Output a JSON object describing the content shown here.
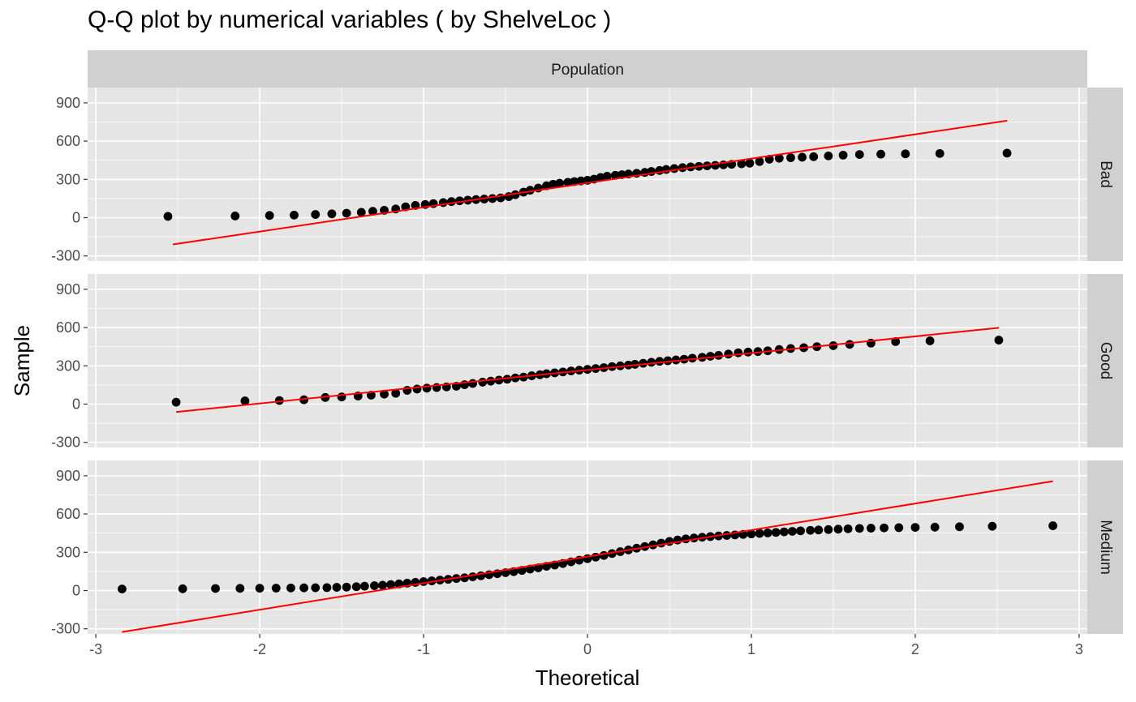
{
  "chart_data": {
    "type": "scatter",
    "title": "Q-Q plot by numerical variables ( by ShelveLoc )",
    "xlabel": "Theoretical",
    "ylabel": "Sample",
    "strip_top": "Population",
    "xlim": [
      -3.05,
      3.05
    ],
    "ylim": [
      -340,
      1020
    ],
    "x_ticks": [
      -3,
      -2,
      -1,
      0,
      1,
      2,
      3
    ],
    "y_ticks": [
      -300,
      0,
      300,
      600,
      900
    ],
    "grid": true,
    "colors": {
      "panel_bg": "#e5e5e5",
      "strip_bg": "#d0d0d0",
      "grid": "#ffffff",
      "point": "#000000",
      "line": "#ff0000"
    },
    "panels": [
      {
        "name": "Bad",
        "line": {
          "x": [
            -2.53,
            2.56
          ],
          "y": [
            -210,
            760
          ]
        },
        "points": [
          [
            -2.56,
            10
          ],
          [
            -2.15,
            13
          ],
          [
            -1.94,
            17
          ],
          [
            -1.79,
            20
          ],
          [
            -1.66,
            25
          ],
          [
            -1.56,
            30
          ],
          [
            -1.47,
            35
          ],
          [
            -1.38,
            42
          ],
          [
            -1.31,
            50
          ],
          [
            -1.24,
            58
          ],
          [
            -1.17,
            68
          ],
          [
            -1.11,
            85
          ],
          [
            -1.05,
            96
          ],
          [
            -0.99,
            103
          ],
          [
            -0.94,
            110
          ],
          [
            -0.88,
            118
          ],
          [
            -0.83,
            126
          ],
          [
            -0.78,
            132
          ],
          [
            -0.73,
            137
          ],
          [
            -0.68,
            142
          ],
          [
            -0.63,
            146
          ],
          [
            -0.58,
            150
          ],
          [
            -0.53,
            155
          ],
          [
            -0.48,
            165
          ],
          [
            -0.44,
            180
          ],
          [
            -0.39,
            200
          ],
          [
            -0.35,
            215
          ],
          [
            -0.3,
            232
          ],
          [
            -0.25,
            250
          ],
          [
            -0.21,
            262
          ],
          [
            -0.17,
            270
          ],
          [
            -0.12,
            277
          ],
          [
            -0.08,
            283
          ],
          [
            -0.04,
            288
          ],
          [
            0.0,
            293
          ],
          [
            0.04,
            302
          ],
          [
            0.08,
            315
          ],
          [
            0.12,
            325
          ],
          [
            0.17,
            332
          ],
          [
            0.21,
            337
          ],
          [
            0.25,
            342
          ],
          [
            0.3,
            348
          ],
          [
            0.35,
            355
          ],
          [
            0.39,
            362
          ],
          [
            0.44,
            370
          ],
          [
            0.48,
            378
          ],
          [
            0.53,
            385
          ],
          [
            0.58,
            392
          ],
          [
            0.63,
            398
          ],
          [
            0.68,
            402
          ],
          [
            0.73,
            406
          ],
          [
            0.78,
            410
          ],
          [
            0.83,
            414
          ],
          [
            0.88,
            418
          ],
          [
            0.94,
            422
          ],
          [
            0.99,
            427
          ],
          [
            1.05,
            440
          ],
          [
            1.11,
            458
          ],
          [
            1.17,
            466
          ],
          [
            1.24,
            470
          ],
          [
            1.31,
            474
          ],
          [
            1.38,
            478
          ],
          [
            1.47,
            484
          ],
          [
            1.56,
            490
          ],
          [
            1.66,
            495
          ],
          [
            1.79,
            498
          ],
          [
            1.94,
            500
          ],
          [
            2.15,
            503
          ],
          [
            2.56,
            506
          ]
        ]
      },
      {
        "name": "Good",
        "line": {
          "x": [
            -2.51,
            2.51
          ],
          "y": [
            -62,
            598
          ]
        },
        "points": [
          [
            -2.51,
            15
          ],
          [
            -2.09,
            25
          ],
          [
            -1.88,
            28
          ],
          [
            -1.73,
            34
          ],
          [
            -1.6,
            52
          ],
          [
            -1.5,
            56
          ],
          [
            -1.4,
            63
          ],
          [
            -1.32,
            70
          ],
          [
            -1.24,
            78
          ],
          [
            -1.17,
            85
          ],
          [
            -1.1,
            108
          ],
          [
            -1.04,
            118
          ],
          [
            -0.98,
            125
          ],
          [
            -0.92,
            130
          ],
          [
            -0.86,
            135
          ],
          [
            -0.8,
            140
          ],
          [
            -0.75,
            152
          ],
          [
            -0.7,
            162
          ],
          [
            -0.64,
            172
          ],
          [
            -0.59,
            180
          ],
          [
            -0.54,
            188
          ],
          [
            -0.49,
            195
          ],
          [
            -0.44,
            205
          ],
          [
            -0.39,
            212
          ],
          [
            -0.34,
            222
          ],
          [
            -0.29,
            230
          ],
          [
            -0.25,
            238
          ],
          [
            -0.2,
            245
          ],
          [
            -0.15,
            252
          ],
          [
            -0.1,
            260
          ],
          [
            -0.05,
            266
          ],
          [
            0.0,
            272
          ],
          [
            0.05,
            279
          ],
          [
            0.1,
            286
          ],
          [
            0.15,
            294
          ],
          [
            0.2,
            300
          ],
          [
            0.25,
            306
          ],
          [
            0.29,
            312
          ],
          [
            0.34,
            320
          ],
          [
            0.39,
            328
          ],
          [
            0.44,
            335
          ],
          [
            0.49,
            340
          ],
          [
            0.54,
            346
          ],
          [
            0.59,
            352
          ],
          [
            0.64,
            360
          ],
          [
            0.7,
            367
          ],
          [
            0.75,
            375
          ],
          [
            0.8,
            382
          ],
          [
            0.86,
            392
          ],
          [
            0.92,
            402
          ],
          [
            0.98,
            408
          ],
          [
            1.04,
            412
          ],
          [
            1.1,
            418
          ],
          [
            1.17,
            428
          ],
          [
            1.24,
            436
          ],
          [
            1.32,
            442
          ],
          [
            1.4,
            450
          ],
          [
            1.5,
            458
          ],
          [
            1.6,
            468
          ],
          [
            1.73,
            478
          ],
          [
            1.88,
            490
          ],
          [
            2.09,
            496
          ],
          [
            2.51,
            502
          ]
        ]
      },
      {
        "name": "Medium",
        "line": {
          "x": [
            -2.84,
            2.84
          ],
          "y": [
            -325,
            857
          ]
        },
        "points": [
          [
            -2.84,
            12
          ],
          [
            -2.47,
            14
          ],
          [
            -2.27,
            16
          ],
          [
            -2.12,
            17
          ],
          [
            -2.0,
            18
          ],
          [
            -1.9,
            19
          ],
          [
            -1.81,
            20
          ],
          [
            -1.73,
            21
          ],
          [
            -1.66,
            22
          ],
          [
            -1.59,
            23
          ],
          [
            -1.53,
            25
          ],
          [
            -1.47,
            27
          ],
          [
            -1.41,
            30
          ],
          [
            -1.36,
            34
          ],
          [
            -1.3,
            38
          ],
          [
            -1.25,
            42
          ],
          [
            -1.2,
            47
          ],
          [
            -1.15,
            52
          ],
          [
            -1.1,
            58
          ],
          [
            -1.05,
            64
          ],
          [
            -1.0,
            70
          ],
          [
            -0.95,
            76
          ],
          [
            -0.9,
            82
          ],
          [
            -0.85,
            88
          ],
          [
            -0.8,
            94
          ],
          [
            -0.75,
            100
          ],
          [
            -0.7,
            108
          ],
          [
            -0.65,
            116
          ],
          [
            -0.6,
            124
          ],
          [
            -0.55,
            132
          ],
          [
            -0.5,
            140
          ],
          [
            -0.45,
            148
          ],
          [
            -0.4,
            158
          ],
          [
            -0.35,
            168
          ],
          [
            -0.3,
            178
          ],
          [
            -0.25,
            190
          ],
          [
            -0.2,
            200
          ],
          [
            -0.15,
            212
          ],
          [
            -0.1,
            225
          ],
          [
            -0.05,
            238
          ],
          [
            0.0,
            250
          ],
          [
            0.05,
            262
          ],
          [
            0.1,
            275
          ],
          [
            0.15,
            290
          ],
          [
            0.2,
            305
          ],
          [
            0.25,
            318
          ],
          [
            0.3,
            332
          ],
          [
            0.35,
            345
          ],
          [
            0.4,
            358
          ],
          [
            0.45,
            372
          ],
          [
            0.5,
            385
          ],
          [
            0.55,
            396
          ],
          [
            0.6,
            405
          ],
          [
            0.65,
            412
          ],
          [
            0.7,
            418
          ],
          [
            0.75,
            423
          ],
          [
            0.8,
            428
          ],
          [
            0.85,
            432
          ],
          [
            0.9,
            436
          ],
          [
            0.95,
            440
          ],
          [
            1.0,
            444
          ],
          [
            1.05,
            448
          ],
          [
            1.1,
            452
          ],
          [
            1.15,
            456
          ],
          [
            1.2,
            460
          ],
          [
            1.25,
            464
          ],
          [
            1.3,
            468
          ],
          [
            1.36,
            472
          ],
          [
            1.41,
            475
          ],
          [
            1.47,
            478
          ],
          [
            1.53,
            481
          ],
          [
            1.59,
            484
          ],
          [
            1.66,
            487
          ],
          [
            1.73,
            489
          ],
          [
            1.81,
            491
          ],
          [
            1.9,
            493
          ],
          [
            2.0,
            495
          ],
          [
            2.12,
            497
          ],
          [
            2.27,
            500
          ],
          [
            2.47,
            504
          ],
          [
            2.84,
            508
          ]
        ]
      }
    ]
  }
}
